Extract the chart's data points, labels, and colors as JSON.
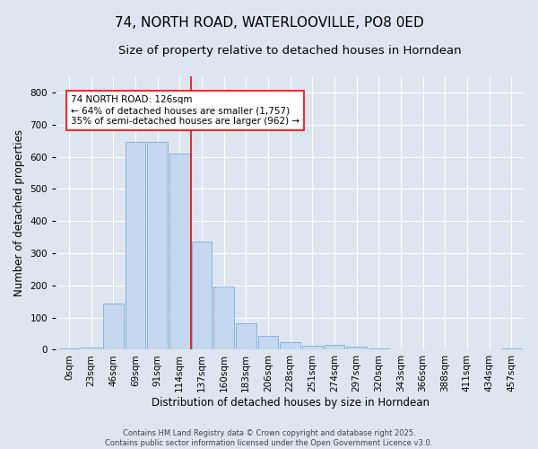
{
  "title": "74, NORTH ROAD, WATERLOOVILLE, PO8 0ED",
  "subtitle": "Size of property relative to detached houses in Horndean",
  "xlabel": "Distribution of detached houses by size in Horndean",
  "ylabel": "Number of detached properties",
  "bin_labels": [
    "0sqm",
    "23sqm",
    "46sqm",
    "69sqm",
    "91sqm",
    "114sqm",
    "137sqm",
    "160sqm",
    "183sqm",
    "206sqm",
    "228sqm",
    "251sqm",
    "274sqm",
    "297sqm",
    "320sqm",
    "343sqm",
    "366sqm",
    "388sqm",
    "411sqm",
    "434sqm",
    "457sqm"
  ],
  "bar_heights": [
    5,
    7,
    145,
    645,
    645,
    610,
    335,
    198,
    83,
    43,
    25,
    12,
    14,
    10,
    5,
    2,
    0,
    0,
    0,
    0,
    3
  ],
  "bar_color": "#c5d8f0",
  "bar_edge_color": "#7badd4",
  "vline_color": "red",
  "annotation_text": "74 NORTH ROAD: 126sqm\n← 64% of detached houses are smaller (1,757)\n35% of semi-detached houses are larger (962) →",
  "annotation_box_color": "white",
  "annotation_box_edge": "red",
  "ylim": [
    0,
    850
  ],
  "yticks": [
    0,
    100,
    200,
    300,
    400,
    500,
    600,
    700,
    800
  ],
  "background_color": "#dde6f0",
  "plot_background": "#dde6f0",
  "footer_line1": "Contains HM Land Registry data © Crown copyright and database right 2025.",
  "footer_line2": "Contains public sector information licensed under the Open Government Licence v3.0.",
  "title_fontsize": 11,
  "subtitle_fontsize": 9.5,
  "axis_label_fontsize": 8.5,
  "tick_fontsize": 7.5,
  "annotation_fontsize": 7.5,
  "footer_fontsize": 6
}
